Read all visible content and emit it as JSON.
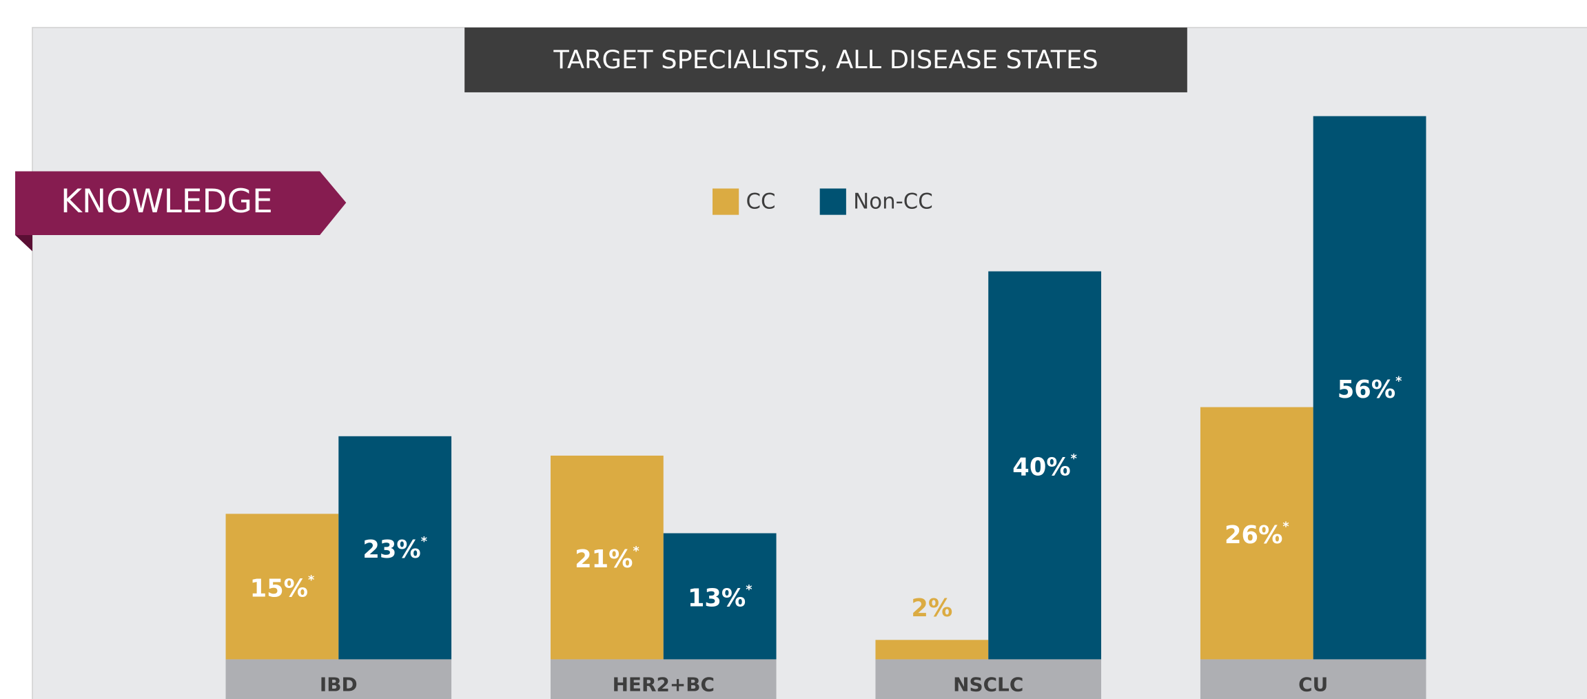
{
  "chart_data": {
    "type": "bar",
    "title": "TARGET SPECIALISTS, ALL DISEASE STATES",
    "section": "KNOWLEDGE",
    "categories": [
      "IBD",
      "HER2+BC",
      "NSCLC",
      "CU"
    ],
    "series": [
      {
        "name": "CC",
        "color": "#dbab42",
        "values": [
          15,
          21,
          2,
          26
        ],
        "value_labels": [
          "15%",
          "21%",
          "2%",
          "26%"
        ],
        "asterisks": [
          "*",
          "*",
          null,
          "*"
        ]
      },
      {
        "name": "Non-CC",
        "color": "#005272",
        "values": [
          23,
          13,
          40,
          56
        ],
        "value_labels": [
          "23%",
          "13%",
          "40%",
          "56%"
        ],
        "asterisks": [
          "*",
          "*",
          "*",
          "*"
        ]
      }
    ]
  }
}
